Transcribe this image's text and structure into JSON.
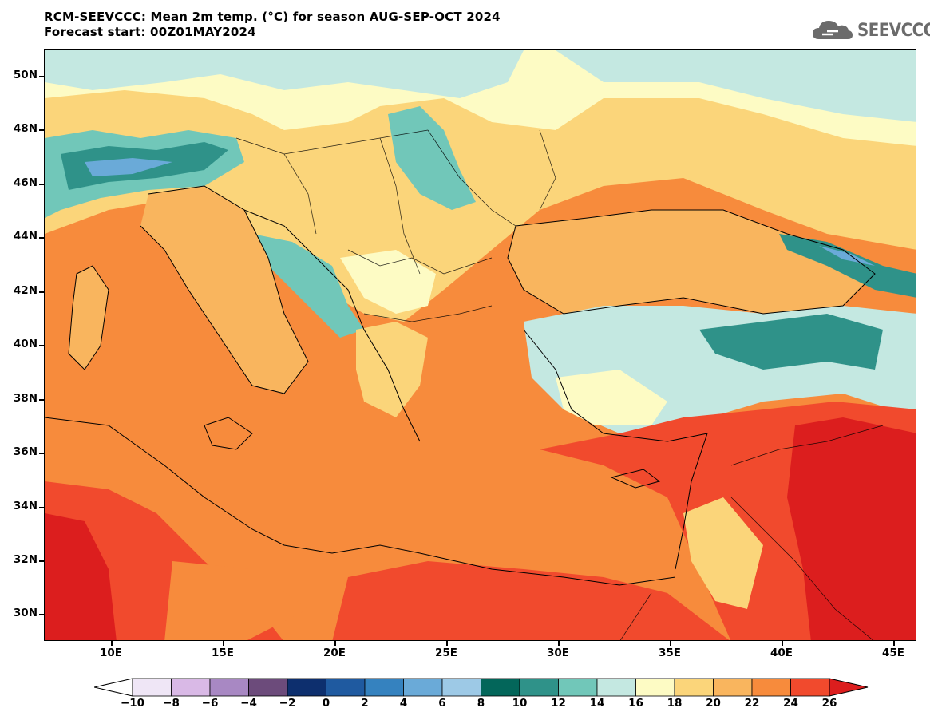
{
  "header": {
    "title_line1": "RCM-SEEVCCC: Mean 2m temp. (°C) for season AUG-SEP-OCT 2024",
    "title_line2": "Forecast start: 00Z01MAY2024",
    "logo_text": "SEEVCCC"
  },
  "map": {
    "projection": "lat-lon",
    "lon_range": [
      7,
      46
    ],
    "lat_range": [
      29,
      51
    ],
    "lat_ticks": [
      "50N",
      "48N",
      "46N",
      "44N",
      "42N",
      "40N",
      "38N",
      "36N",
      "34N",
      "32N",
      "30N"
    ],
    "lon_ticks": [
      "10E",
      "15E",
      "20E",
      "25E",
      "30E",
      "35E",
      "40E",
      "45E"
    ]
  },
  "colorbar": {
    "labels": [
      "−10",
      "−8",
      "−6",
      "−4",
      "−2",
      "0",
      "2",
      "4",
      "6",
      "8",
      "10",
      "12",
      "14",
      "16",
      "18",
      "20",
      "22",
      "24",
      "26"
    ],
    "colors": [
      "#ffffff",
      "#efe6f6",
      "#d9b9e6",
      "#a888c3",
      "#6c4b7b",
      "#0d2f6e",
      "#1f5aa0",
      "#3582bf",
      "#6aaad8",
      "#9dc9e6",
      "#03665a",
      "#2f9289",
      "#71c7b9",
      "#c4e8e1",
      "#fdfbc4",
      "#fbd57a",
      "#f9b55e",
      "#f78b3c",
      "#f14a2d",
      "#dc1e1e"
    ]
  }
}
